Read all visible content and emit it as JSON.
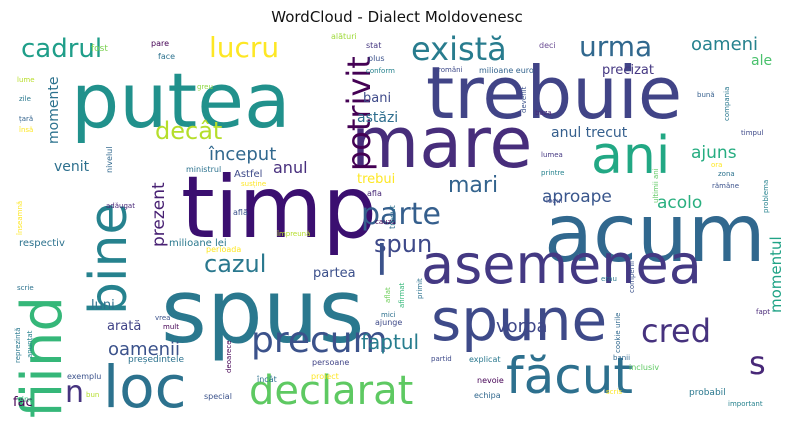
{
  "title": "WordCloud - Dialect Moldovenesc",
  "words": [
    {
      "text": "timp",
      "color": "#3b0f70"
    },
    {
      "text": "acum",
      "color": "#31688e"
    },
    {
      "text": "spus",
      "color": "#2a788e"
    },
    {
      "text": "trebuie",
      "color": "#414487"
    },
    {
      "text": "putea",
      "color": "#21918c"
    },
    {
      "text": "spune",
      "color": "#3e4a89"
    },
    {
      "text": "asemenea",
      "color": "#443983"
    },
    {
      "text": "mare",
      "color": "#472d7b"
    },
    {
      "text": "loc",
      "color": "#2c728e"
    },
    {
      "text": "făcut",
      "color": "#2d708e"
    },
    {
      "text": "ani",
      "color": "#22a884"
    },
    {
      "text": "fiind",
      "color": "#35b779"
    },
    {
      "text": "bine",
      "color": "#26828e"
    },
    {
      "text": "declarat",
      "color": "#5ec962"
    },
    {
      "text": "precum",
      "color": "#3b528b"
    },
    {
      "text": "parte",
      "color": "#355f8d"
    },
    {
      "text": "cred",
      "color": "#46327e"
    },
    {
      "text": "există",
      "color": "#287c8e"
    },
    {
      "text": "urma",
      "color": "#31688e"
    },
    {
      "text": "lucru",
      "color": "#fde725"
    },
    {
      "text": "cadrul",
      "color": "#1f9e89"
    },
    {
      "text": "potrivit",
      "color": "#440154"
    },
    {
      "text": "decât",
      "color": "#b5de2b"
    },
    {
      "text": "cazul",
      "color": "#2a788e"
    },
    {
      "text": "spun",
      "color": "#3e4989"
    },
    {
      "text": "mari",
      "color": "#33638d"
    },
    {
      "text": "s",
      "color": "#482878"
    },
    {
      "text": "l",
      "color": "#3b528b"
    },
    {
      "text": "n",
      "color": "#46337f"
    },
    {
      "text": "faptul",
      "color": "#287d8e"
    },
    {
      "text": "vorba",
      "color": "#3f4788"
    },
    {
      "text": "început",
      "color": "#31688e"
    },
    {
      "text": "anul",
      "color": "#472f7d"
    },
    {
      "text": "oameni",
      "color": "#26828e"
    },
    {
      "text": "oamenii",
      "color": "#3b528b"
    },
    {
      "text": "aproape",
      "color": "#39568c"
    },
    {
      "text": "acolo",
      "color": "#29af7f"
    },
    {
      "text": "ajuns",
      "color": "#26ad81"
    },
    {
      "text": "prezent",
      "color": "#482173"
    },
    {
      "text": "momentul",
      "color": "#20a386"
    },
    {
      "text": "momente",
      "color": "#2c728e"
    },
    {
      "text": "venit",
      "color": "#2d708e"
    },
    {
      "text": "anul trecut",
      "color": "#355f8d"
    },
    {
      "text": "astăzi",
      "color": "#2e6e8e"
    },
    {
      "text": "bani",
      "color": "#3e4a89"
    },
    {
      "text": "precizat",
      "color": "#453882"
    },
    {
      "text": "ale",
      "color": "#4ac16d"
    },
    {
      "text": "trebui",
      "color": "#fde725"
    },
    {
      "text": "partea",
      "color": "#3c508b"
    },
    {
      "text": "arată",
      "color": "#414487"
    },
    {
      "text": "luni",
      "color": "#2d708e"
    },
    {
      "text": "fac",
      "color": "#440154"
    },
    {
      "text": "arată",
      "color": "#2a788e"
    },
    {
      "text": "fost",
      "color": "#7ad151"
    },
    {
      "text": "alături",
      "color": "#9fda3a"
    },
    {
      "text": "stat",
      "color": "#453781"
    },
    {
      "text": "deci",
      "color": "#6a4c93"
    },
    {
      "text": "români",
      "color": "#3e4a89"
    },
    {
      "text": "milioane euro",
      "color": "#33638d"
    },
    {
      "text": "plus",
      "color": "#3b528b"
    },
    {
      "text": "conform",
      "color": "#26828e"
    },
    {
      "text": "face",
      "color": "#2c728e"
    },
    {
      "text": "pare",
      "color": "#440154"
    },
    {
      "text": "lume",
      "color": "#b8de29"
    },
    {
      "text": "zile",
      "color": "#2a788e"
    },
    {
      "text": "țară",
      "color": "#33638d"
    },
    {
      "text": "însă",
      "color": "#fde725"
    },
    {
      "text": "greu",
      "color": "#90d743"
    },
    {
      "text": "devenit",
      "color": "#3b528b"
    },
    {
      "text": "baza",
      "color": "#482878"
    },
    {
      "text": "bună",
      "color": "#355f8d"
    },
    {
      "text": "compania",
      "color": "#2a788e"
    },
    {
      "text": "timpul",
      "color": "#3e4a89"
    },
    {
      "text": "lumea",
      "color": "#453882"
    },
    {
      "text": "zona",
      "color": "#2c728e"
    },
    {
      "text": "ora",
      "color": "#fde725"
    },
    {
      "text": "rămâne",
      "color": "#3b528b"
    },
    {
      "text": "problema",
      "color": "#26828e"
    },
    {
      "text": "Astfel",
      "color": "#3e4a89"
    },
    {
      "text": "nivelul",
      "color": "#31688e"
    },
    {
      "text": "ministrul",
      "color": "#2c728e"
    },
    {
      "text": "susține",
      "color": "#fde725"
    },
    {
      "text": "afla",
      "color": "#482878"
    },
    {
      "text": "află",
      "color": "#3b528b"
    },
    {
      "text": "împreună",
      "color": "#b5de2b"
    },
    {
      "text": "perioada",
      "color": "#fde725"
    },
    {
      "text": "cauza",
      "color": "#440154"
    },
    {
      "text": "trecut",
      "color": "#2d708e"
    },
    {
      "text": "locul",
      "color": "#3e4a89"
    },
    {
      "text": "printre",
      "color": "#26828e"
    },
    {
      "text": "ultimii ani",
      "color": "#5ec962"
    },
    {
      "text": "adăugat",
      "color": "#482878"
    },
    {
      "text": "înseamnă",
      "color": "#fde725"
    },
    {
      "text": "respectiv",
      "color": "#2c728e"
    },
    {
      "text": "milioane lei",
      "color": "#2a788e"
    },
    {
      "text": "vrea",
      "color": "#3b528b"
    },
    {
      "text": "mult",
      "color": "#440154"
    },
    {
      "text": "mici",
      "color": "#2d708e"
    },
    {
      "text": "aflat",
      "color": "#6ece58"
    },
    {
      "text": "primit",
      "color": "#2c728e"
    },
    {
      "text": "afirmat",
      "color": "#35b779"
    },
    {
      "text": "erau",
      "color": "#2a788e"
    },
    {
      "text": "compenii",
      "color": "#3b528b"
    },
    {
      "text": "cookie urile",
      "color": "#31688e"
    },
    {
      "text": "scrie",
      "color": "#2c728e"
    },
    {
      "text": "ajunge",
      "color": "#3e4a89"
    },
    {
      "text": "fapt",
      "color": "#482878"
    },
    {
      "text": "reprezintă",
      "color": "#2a788e"
    },
    {
      "text": "anunțat",
      "color": "#26828e"
    },
    {
      "text": "deoarece",
      "color": "#440154"
    },
    {
      "text": "exemplu",
      "color": "#3b528b"
    },
    {
      "text": "președintele",
      "color": "#2c728e"
    },
    {
      "text": "persoane",
      "color": "#414487"
    },
    {
      "text": "proiect",
      "color": "#fde725"
    },
    {
      "text": "partid",
      "color": "#3e4a89"
    },
    {
      "text": "explicat",
      "color": "#2a788e"
    },
    {
      "text": "banii",
      "color": "#31688e"
    },
    {
      "text": "inclusiv",
      "color": "#5ec962"
    },
    {
      "text": "vine",
      "color": "#35b779"
    },
    {
      "text": "bun",
      "color": "#b5de2b"
    },
    {
      "text": "încât",
      "color": "#2c728e"
    },
    {
      "text": "special",
      "color": "#3b528b"
    },
    {
      "text": "nevoie",
      "color": "#440154"
    },
    {
      "text": "echipa",
      "color": "#31688e"
    },
    {
      "text": "scris",
      "color": "#fde725"
    },
    {
      "text": "probabil",
      "color": "#2a788e"
    },
    {
      "text": "important",
      "color": "#26828e"
    }
  ]
}
